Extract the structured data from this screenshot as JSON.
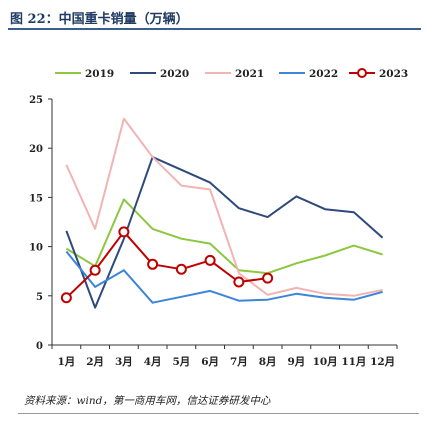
{
  "header": {
    "title": "图 22：中国重卡销量（万辆）"
  },
  "footer": {
    "source": "资料来源：wind，第一商用车网，信达证券研发中心"
  },
  "chart_data": {
    "type": "line",
    "title": "",
    "xlabel": "",
    "ylabel": "",
    "categories": [
      "1月",
      "2月",
      "3月",
      "4月",
      "5月",
      "6月",
      "7月",
      "8月",
      "9月",
      "10月",
      "11月",
      "12月"
    ],
    "yticks": [
      0,
      5,
      10,
      15,
      20,
      25
    ],
    "ylim": [
      0,
      25
    ],
    "grid": false,
    "legend_position": "top",
    "series": [
      {
        "name": "2019",
        "color": "#8dc63f",
        "marker": "none",
        "values": [
          9.8,
          8.0,
          14.8,
          11.8,
          10.8,
          10.3,
          7.6,
          7.3,
          8.3,
          9.1,
          10.1,
          9.2
        ]
      },
      {
        "name": "2020",
        "color": "#2e4a7c",
        "marker": "none",
        "values": [
          11.6,
          3.8,
          10.8,
          19.1,
          17.8,
          16.5,
          13.9,
          13.0,
          15.1,
          13.8,
          13.5,
          10.9
        ]
      },
      {
        "name": "2021",
        "color": "#f2b3b3",
        "marker": "none",
        "values": [
          18.3,
          11.8,
          23.0,
          19.1,
          16.2,
          15.8,
          7.3,
          5.1,
          5.8,
          5.2,
          5.0,
          5.6
        ]
      },
      {
        "name": "2022",
        "color": "#3d85d8",
        "marker": "none",
        "values": [
          9.5,
          5.9,
          7.6,
          4.3,
          4.9,
          5.5,
          4.5,
          4.6,
          5.2,
          4.8,
          4.6,
          5.4
        ]
      },
      {
        "name": "2023",
        "color": "#c00000",
        "marker": "circle",
        "values": [
          4.8,
          7.6,
          11.5,
          8.2,
          7.7,
          8.6,
          6.4,
          6.8,
          null,
          null,
          null,
          null
        ]
      }
    ]
  }
}
